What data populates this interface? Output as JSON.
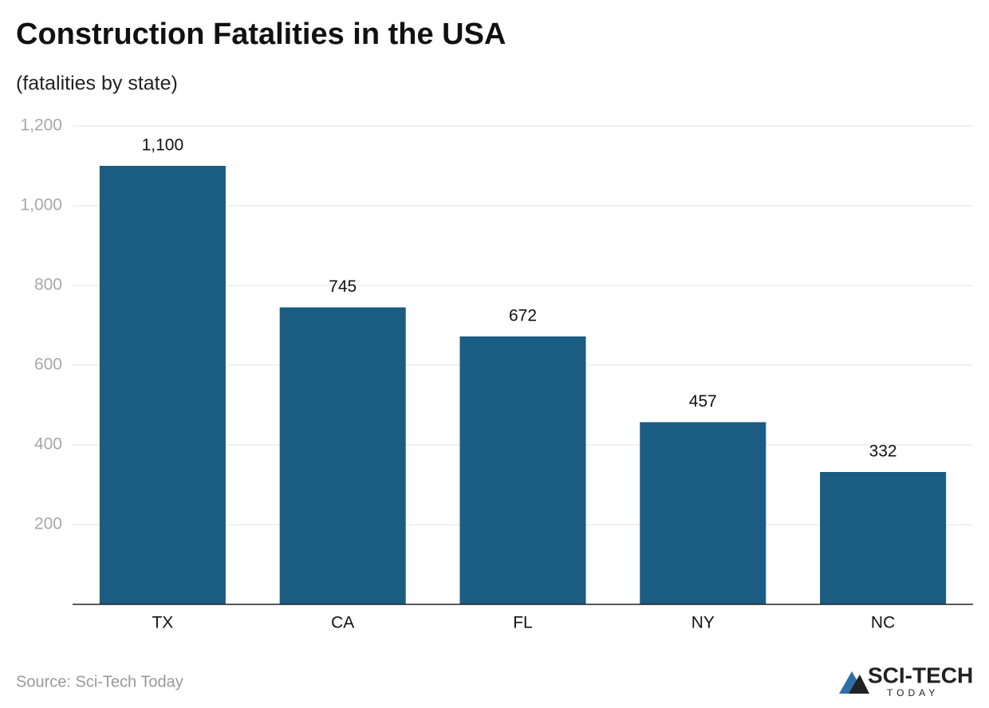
{
  "chart_data": {
    "type": "bar",
    "title": "Construction Fatalities in the USA",
    "subtitle": "(fatalities by state)",
    "categories": [
      "TX",
      "CA",
      "FL",
      "NY",
      "NC"
    ],
    "values": [
      1100,
      745,
      672,
      457,
      332
    ],
    "value_labels": [
      "1,100",
      "745",
      "672",
      "457",
      "332"
    ],
    "color": "#1b5c82",
    "ylim": [
      0,
      1200
    ],
    "yticks": [
      200,
      400,
      600,
      800,
      {
        "value": 1000,
        "label": "1,000"
      },
      {
        "value": 1200,
        "label": "1,200"
      }
    ],
    "grid": true,
    "source": "Source: Sci-Tech Today",
    "logo": {
      "line1": "SCI-TECH",
      "line2": "TODAY"
    }
  }
}
